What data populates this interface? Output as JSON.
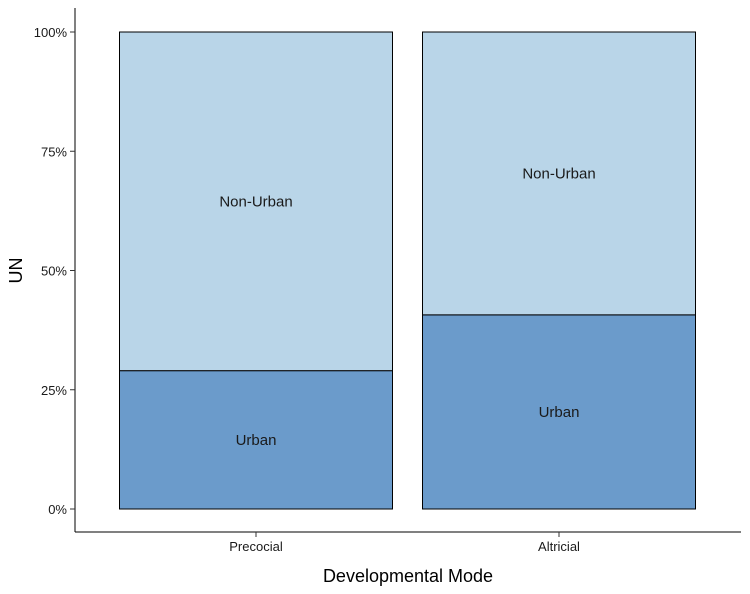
{
  "chart_data": {
    "type": "bar",
    "stacked": true,
    "normalized": true,
    "categories": [
      "Precocial",
      "Altricial"
    ],
    "series": [
      {
        "name": "Urban",
        "values": [
          29,
          40.7
        ],
        "color": "#6b9bcb"
      },
      {
        "name": "Non-Urban",
        "values": [
          71,
          59.3
        ],
        "color": "#b9d5e8"
      }
    ],
    "xlabel": "Developmental Mode",
    "ylabel": "UN",
    "ylim": [
      0,
      100
    ],
    "yticks": [
      "0%",
      "25%",
      "50%",
      "75%",
      "100%"
    ],
    "grid": false,
    "legend": "none"
  }
}
